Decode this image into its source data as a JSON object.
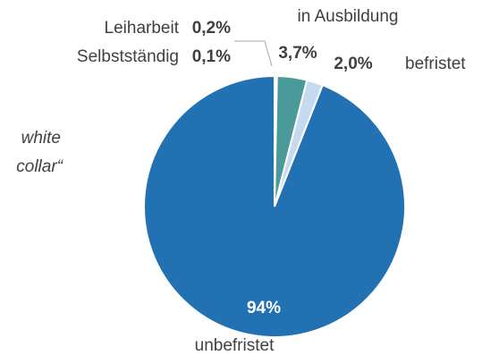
{
  "chart_data": {
    "type": "pie",
    "categories": [
      "Selbstständig",
      "Leiharbeit",
      "in Ausbildung",
      "befristet",
      "unbefristet"
    ],
    "values": [
      0.1,
      0.2,
      3.7,
      2.0,
      94
    ],
    "value_labels": [
      "0,1%",
      "0,2%",
      "3,7%",
      "2,0%",
      "94%"
    ],
    "colors": [
      "#d9d9d9",
      "#a6a6a6",
      "#4a9a9a",
      "#c5d9f0",
      "#2271b3"
    ],
    "annotation": [
      "white",
      "collar“"
    ]
  }
}
